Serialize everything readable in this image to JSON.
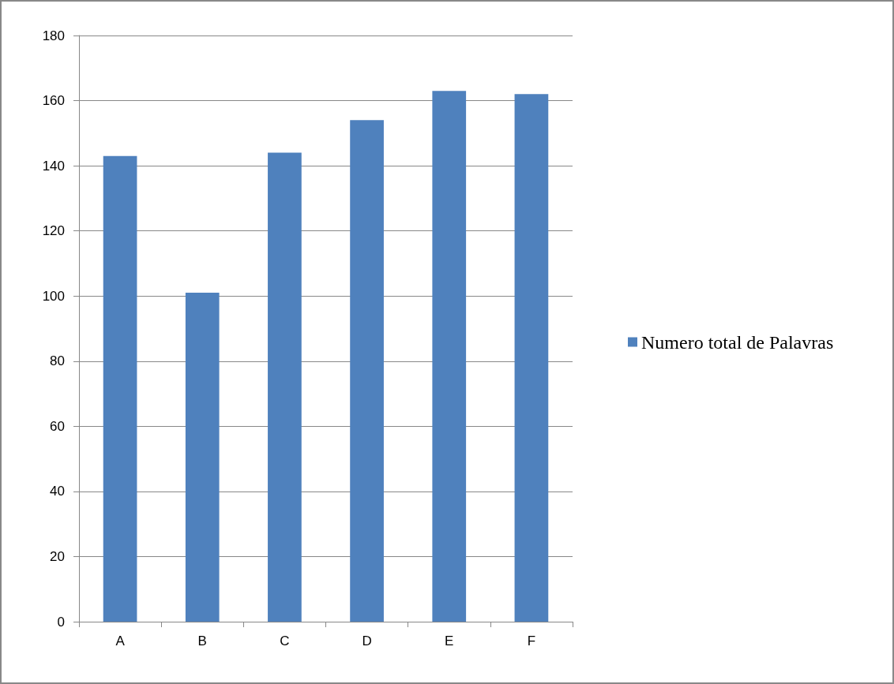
{
  "chart_data": {
    "type": "bar",
    "categories": [
      "A",
      "B",
      "C",
      "D",
      "E",
      "F"
    ],
    "series": [
      {
        "name": "Numero total de Palavras",
        "color": "#4f81bd",
        "values": [
          143,
          101,
          144,
          154,
          163,
          162
        ]
      }
    ],
    "ylim": [
      0,
      180
    ],
    "yticks": [
      0,
      20,
      40,
      60,
      80,
      100,
      120,
      140,
      160,
      180
    ],
    "grid": "y",
    "legend": "right"
  }
}
